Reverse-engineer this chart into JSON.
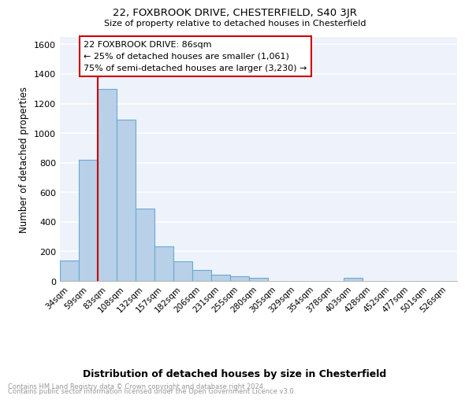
{
  "title": "22, FOXBROOK DRIVE, CHESTERFIELD, S40 3JR",
  "subtitle": "Size of property relative to detached houses in Chesterfield",
  "xlabel": "Distribution of detached houses by size in Chesterfield",
  "ylabel": "Number of detached properties",
  "footer_line1": "Contains HM Land Registry data © Crown copyright and database right 2024.",
  "footer_line2": "Contains public sector information licensed under the Open Government Licence v3.0.",
  "categories": [
    "34sqm",
    "59sqm",
    "83sqm",
    "108sqm",
    "132sqm",
    "157sqm",
    "182sqm",
    "206sqm",
    "231sqm",
    "255sqm",
    "280sqm",
    "305sqm",
    "329sqm",
    "354sqm",
    "378sqm",
    "403sqm",
    "428sqm",
    "452sqm",
    "477sqm",
    "501sqm",
    "526sqm"
  ],
  "values": [
    140,
    820,
    1300,
    1090,
    490,
    235,
    135,
    75,
    45,
    30,
    20,
    0,
    0,
    0,
    0,
    20,
    0,
    0,
    0,
    0,
    0
  ],
  "bar_color": "#b8d0e8",
  "bar_edge_color": "#6aaad4",
  "background_color": "#eef2fa",
  "grid_color": "#ffffff",
  "ylim": [
    0,
    1650
  ],
  "yticks": [
    0,
    200,
    400,
    600,
    800,
    1000,
    1200,
    1400,
    1600
  ],
  "annotation_line1": "22 FOXBROOK DRIVE: 86sqm",
  "annotation_line2": "← 25% of detached houses are smaller (1,061)",
  "annotation_line3": "75% of semi-detached houses are larger (3,230) →",
  "vline_color": "#cc0000",
  "box_color": "#cc0000"
}
